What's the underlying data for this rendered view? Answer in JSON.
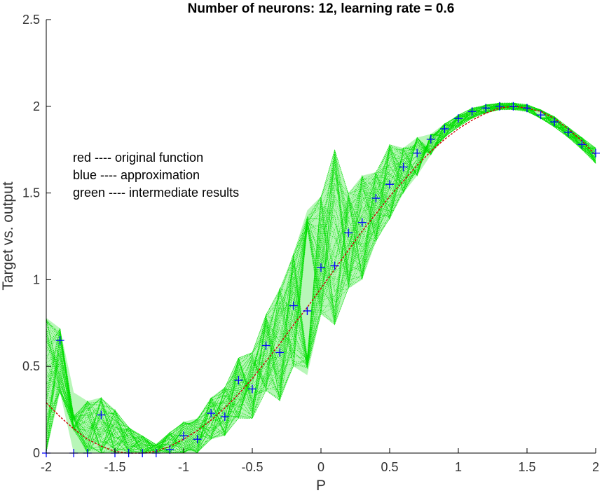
{
  "chart_data": {
    "type": "line",
    "title": "Number of neurons: 12, learning rate = 0.6",
    "xlabel": "P",
    "ylabel": "Target vs. output",
    "xlim": [
      -2,
      2
    ],
    "ylim": [
      0,
      2.5
    ],
    "x_ticks": [
      "-2",
      "-1.5",
      "-1",
      "-0.5",
      "0",
      "0.5",
      "1",
      "1.5",
      "2"
    ],
    "y_ticks": [
      "0",
      "0.5",
      "1",
      "1.5",
      "2",
      "2.5"
    ],
    "grid": false,
    "annotations": [
      "red ---- original function",
      "blue ---- approximation",
      "green ---- intermediate results"
    ],
    "colors": {
      "original": "#cc0000",
      "approximation": "#0000ff",
      "intermediate": "#00dd00"
    },
    "series": [
      {
        "role": "original",
        "style": "dashed-line",
        "x": [
          -2.0,
          -1.9,
          -1.8,
          -1.7,
          -1.6,
          -1.5,
          -1.4,
          -1.3,
          -1.2,
          -1.1,
          -1.0,
          -0.9,
          -0.8,
          -0.7,
          -0.6,
          -0.5,
          -0.4,
          -0.3,
          -0.2,
          -0.1,
          0.0,
          0.1,
          0.2,
          0.3,
          0.4,
          0.5,
          0.6,
          0.7,
          0.8,
          0.9,
          1.0,
          1.1,
          1.2,
          1.3,
          1.4,
          1.5,
          1.6,
          1.7,
          1.8,
          1.9,
          2.0
        ],
        "y": [
          0.29,
          0.21,
          0.14,
          0.08,
          0.04,
          0.01,
          0.0,
          0.0,
          0.01,
          0.04,
          0.08,
          0.13,
          0.19,
          0.26,
          0.34,
          0.43,
          0.53,
          0.63,
          0.74,
          0.84,
          0.95,
          1.06,
          1.17,
          1.28,
          1.38,
          1.48,
          1.57,
          1.66,
          1.74,
          1.81,
          1.87,
          1.92,
          1.96,
          1.99,
          2.0,
          1.99,
          1.97,
          1.93,
          1.87,
          1.8,
          1.72
        ]
      },
      {
        "role": "approximation",
        "style": "plus-markers",
        "x": [
          -2.0,
          -1.9,
          -1.8,
          -1.7,
          -1.6,
          -1.5,
          -1.4,
          -1.3,
          -1.2,
          -1.1,
          -1.0,
          -0.9,
          -0.8,
          -0.7,
          -0.6,
          -0.5,
          -0.4,
          -0.3,
          -0.2,
          -0.1,
          0.0,
          0.1,
          0.2,
          0.3,
          0.4,
          0.5,
          0.6,
          0.7,
          0.8,
          0.9,
          1.0,
          1.1,
          1.2,
          1.3,
          1.4,
          1.5,
          1.6,
          1.7,
          1.8,
          1.9,
          2.0
        ],
        "y": [
          0.0,
          0.65,
          0.0,
          0.0,
          0.22,
          0.0,
          0.0,
          0.0,
          0.0,
          0.02,
          0.1,
          0.08,
          0.23,
          0.21,
          0.42,
          0.37,
          0.62,
          0.58,
          0.85,
          0.82,
          1.07,
          1.08,
          1.27,
          1.33,
          1.47,
          1.55,
          1.65,
          1.73,
          1.81,
          1.87,
          1.93,
          1.97,
          1.99,
          2.0,
          2.0,
          1.99,
          1.95,
          1.91,
          1.85,
          1.78,
          1.73
        ]
      },
      {
        "role": "intermediate",
        "style": "dotted-envelope",
        "x": [
          -2.0,
          -1.9,
          -1.8,
          -1.7,
          -1.6,
          -1.5,
          -1.4,
          -1.3,
          -1.2,
          -1.1,
          -1.0,
          -0.9,
          -0.8,
          -0.7,
          -0.6,
          -0.5,
          -0.4,
          -0.3,
          -0.2,
          -0.1,
          0.0,
          0.1,
          0.2,
          0.3,
          0.4,
          0.5,
          0.6,
          0.7,
          0.8,
          0.9,
          1.0,
          1.1,
          1.2,
          1.3,
          1.4,
          1.5,
          1.6,
          1.7,
          1.8,
          1.9,
          2.0
        ],
        "y_low": [
          0.0,
          0.35,
          0.0,
          0.0,
          0.0,
          0.0,
          0.0,
          0.0,
          0.0,
          0.0,
          0.0,
          0.0,
          0.08,
          0.1,
          0.2,
          0.2,
          0.36,
          0.3,
          0.5,
          0.45,
          0.8,
          0.74,
          0.95,
          1.0,
          1.22,
          1.35,
          1.5,
          1.6,
          1.72,
          1.82,
          1.88,
          1.93,
          1.96,
          1.98,
          1.98,
          1.97,
          1.93,
          1.88,
          1.82,
          1.75,
          1.67
        ],
        "y_high": [
          0.78,
          0.72,
          0.35,
          0.3,
          0.32,
          0.25,
          0.15,
          0.1,
          0.05,
          0.12,
          0.18,
          0.2,
          0.32,
          0.38,
          0.55,
          0.58,
          0.8,
          0.95,
          1.15,
          1.4,
          1.48,
          1.75,
          1.5,
          1.6,
          1.62,
          1.78,
          1.76,
          1.82,
          1.84,
          1.9,
          1.95,
          1.99,
          2.01,
          2.02,
          2.02,
          2.01,
          1.98,
          1.94,
          1.88,
          1.82,
          1.76
        ]
      }
    ]
  }
}
